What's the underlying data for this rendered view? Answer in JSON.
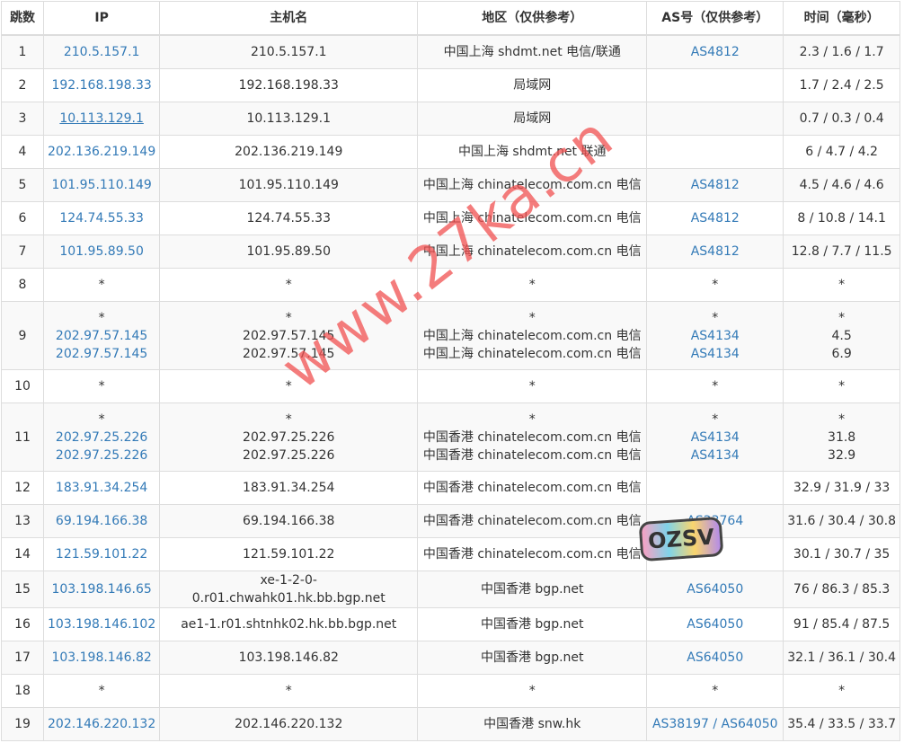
{
  "headers": [
    "跳数",
    "IP",
    "主机名",
    "地区（仅供参考）",
    "AS号（仅供参考）",
    "时间（毫秒）"
  ],
  "rows": [
    {
      "hop": "1",
      "ip": [
        "210.5.157.1"
      ],
      "host": [
        "210.5.157.1"
      ],
      "region": [
        "中国上海 shdmt.net 电信/联通"
      ],
      "as": [
        "AS4812"
      ],
      "time": [
        "2.3 / 1.6 / 1.7"
      ]
    },
    {
      "hop": "2",
      "ip": [
        "192.168.198.33"
      ],
      "host": [
        "192.168.198.33"
      ],
      "region": [
        "局域网"
      ],
      "as": [
        ""
      ],
      "time": [
        "1.7 / 2.4 / 2.5"
      ]
    },
    {
      "hop": "3",
      "ip": [
        "10.113.129.1"
      ],
      "host": [
        "10.113.129.1"
      ],
      "region": [
        "局域网"
      ],
      "as": [
        ""
      ],
      "time": [
        "0.7 / 0.3 / 0.4"
      ],
      "underline": true
    },
    {
      "hop": "4",
      "ip": [
        "202.136.219.149"
      ],
      "host": [
        "202.136.219.149"
      ],
      "region": [
        "中国上海 shdmt.net 联通"
      ],
      "as": [
        ""
      ],
      "time": [
        "6 / 4.7 / 4.2"
      ]
    },
    {
      "hop": "5",
      "ip": [
        "101.95.110.149"
      ],
      "host": [
        "101.95.110.149"
      ],
      "region": [
        "中国上海 chinatelecom.com.cn 电信"
      ],
      "as": [
        "AS4812"
      ],
      "time": [
        "4.5 / 4.6 / 4.6"
      ]
    },
    {
      "hop": "6",
      "ip": [
        "124.74.55.33"
      ],
      "host": [
        "124.74.55.33"
      ],
      "region": [
        "中国上海 chinatelecom.com.cn 电信"
      ],
      "as": [
        "AS4812"
      ],
      "time": [
        "8 / 10.8 / 14.1"
      ]
    },
    {
      "hop": "7",
      "ip": [
        "101.95.89.50"
      ],
      "host": [
        "101.95.89.50"
      ],
      "region": [
        "中国上海 chinatelecom.com.cn 电信"
      ],
      "as": [
        "AS4812"
      ],
      "time": [
        "12.8 / 7.7 / 11.5"
      ]
    },
    {
      "hop": "8",
      "ip": [
        "*"
      ],
      "host": [
        "*"
      ],
      "region": [
        "*"
      ],
      "as": [
        "*"
      ],
      "time": [
        "*"
      ]
    },
    {
      "hop": "9",
      "ip": [
        "*",
        "202.97.57.145",
        "202.97.57.145"
      ],
      "host": [
        "*",
        "202.97.57.145",
        "202.97.57.145"
      ],
      "region": [
        "*",
        "中国上海 chinatelecom.com.cn 电信",
        "中国上海 chinatelecom.com.cn 电信"
      ],
      "as": [
        "*",
        "AS4134",
        "AS4134"
      ],
      "time": [
        "*",
        "4.5",
        "6.9"
      ]
    },
    {
      "hop": "10",
      "ip": [
        "*"
      ],
      "host": [
        "*"
      ],
      "region": [
        "*"
      ],
      "as": [
        "*"
      ],
      "time": [
        "*"
      ]
    },
    {
      "hop": "11",
      "ip": [
        "*",
        "202.97.25.226",
        "202.97.25.226"
      ],
      "host": [
        "*",
        "202.97.25.226",
        "202.97.25.226"
      ],
      "region": [
        "*",
        "中国香港 chinatelecom.com.cn 电信",
        "中国香港 chinatelecom.com.cn 电信"
      ],
      "as": [
        "*",
        "AS4134",
        "AS4134"
      ],
      "time": [
        "*",
        "31.8",
        "32.9"
      ]
    },
    {
      "hop": "12",
      "ip": [
        "183.91.34.254"
      ],
      "host": [
        "183.91.34.254"
      ],
      "region": [
        "中国香港 chinatelecom.com.cn 电信"
      ],
      "as": [
        ""
      ],
      "time": [
        "32.9 / 31.9 / 33"
      ]
    },
    {
      "hop": "13",
      "ip": [
        "69.194.166.38"
      ],
      "host": [
        "69.194.166.38"
      ],
      "region": [
        "中国香港 chinatelecom.com.cn 电信"
      ],
      "as": [
        "AS23764"
      ],
      "time": [
        "31.6 / 30.4 / 30.8"
      ]
    },
    {
      "hop": "14",
      "ip": [
        "121.59.101.22"
      ],
      "host": [
        "121.59.101.22"
      ],
      "region": [
        "中国香港 chinatelecom.com.cn 电信"
      ],
      "as": [
        ""
      ],
      "time": [
        "30.1 / 30.7 / 35"
      ]
    },
    {
      "hop": "15",
      "ip": [
        "103.198.146.65"
      ],
      "host": [
        "xe-1-2-0-0.r01.chwahk01.hk.bb.bgp.net"
      ],
      "region": [
        "中国香港 bgp.net"
      ],
      "as": [
        "AS64050"
      ],
      "time": [
        "76 / 86.3 / 85.3"
      ]
    },
    {
      "hop": "16",
      "ip": [
        "103.198.146.102"
      ],
      "host": [
        "ae1-1.r01.shtnhk02.hk.bb.bgp.net"
      ],
      "region": [
        "中国香港 bgp.net"
      ],
      "as": [
        "AS64050"
      ],
      "time": [
        "91 / 85.4 / 87.5"
      ]
    },
    {
      "hop": "17",
      "ip": [
        "103.198.146.82"
      ],
      "host": [
        "103.198.146.82"
      ],
      "region": [
        "中国香港 bgp.net"
      ],
      "as": [
        "AS64050"
      ],
      "time": [
        "32.1 / 36.1 / 30.4"
      ]
    },
    {
      "hop": "18",
      "ip": [
        "*"
      ],
      "host": [
        "*"
      ],
      "region": [
        "*"
      ],
      "as": [
        "*"
      ],
      "time": [
        "*"
      ]
    },
    {
      "hop": "19",
      "ip": [
        "202.146.220.132"
      ],
      "host": [
        "202.146.220.132"
      ],
      "region": [
        "中国香港 snw.hk"
      ],
      "as": [
        "AS38197 / AS64050"
      ],
      "time": [
        "35.4 / 33.5 / 33.7"
      ]
    }
  ],
  "watermark": "www.27ka.cn",
  "logo": "OZSV",
  "colors": {
    "link": "#337ab7",
    "stripe": "#f9f9f9",
    "border": "#dddddd",
    "watermark": "#f05050"
  }
}
